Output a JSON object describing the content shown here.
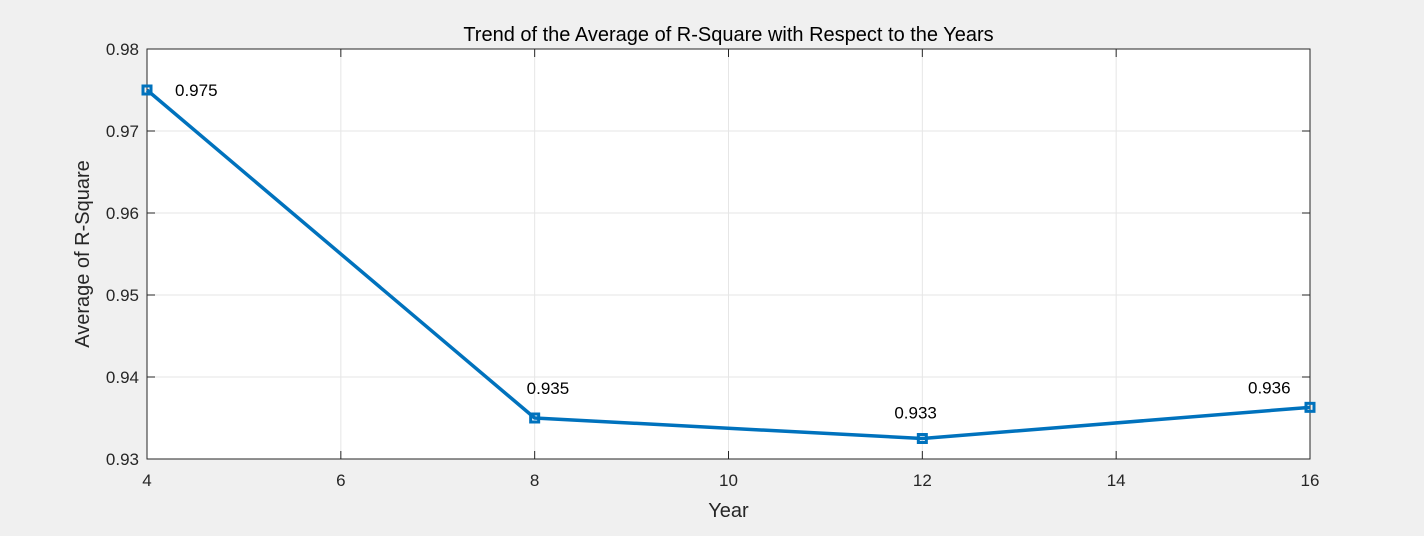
{
  "chart_data": {
    "type": "line",
    "title": "Trend of the Average of R-Square with Respect to the Years",
    "xlabel": "Year",
    "ylabel": "Average of R-Square",
    "xlim": [
      4,
      16
    ],
    "ylim": [
      0.93,
      0.98
    ],
    "xticks": [
      4,
      6,
      8,
      10,
      12,
      14,
      16
    ],
    "yticks": [
      0.93,
      0.94,
      0.95,
      0.96,
      0.97,
      0.98
    ],
    "xtick_labels": [
      "4",
      "6",
      "8",
      "10",
      "12",
      "14",
      "16"
    ],
    "ytick_labels": [
      "0.93",
      "0.94",
      "0.95",
      "0.96",
      "0.97",
      "0.98"
    ],
    "grid": true,
    "series": [
      {
        "x": [
          4,
          8,
          12,
          16
        ],
        "y": [
          0.975,
          0.935,
          0.9325,
          0.9363
        ],
        "color": "#0072bd",
        "marker": "square",
        "data_labels": [
          "0.975",
          "0.935",
          "0.933",
          "0.936"
        ]
      }
    ]
  },
  "colors": {
    "figure_background": "#f0f0f0",
    "axes_background": "#ffffff",
    "grid": "#e6e6e6",
    "axis_line": "#262626",
    "line": "#0072bd"
  }
}
